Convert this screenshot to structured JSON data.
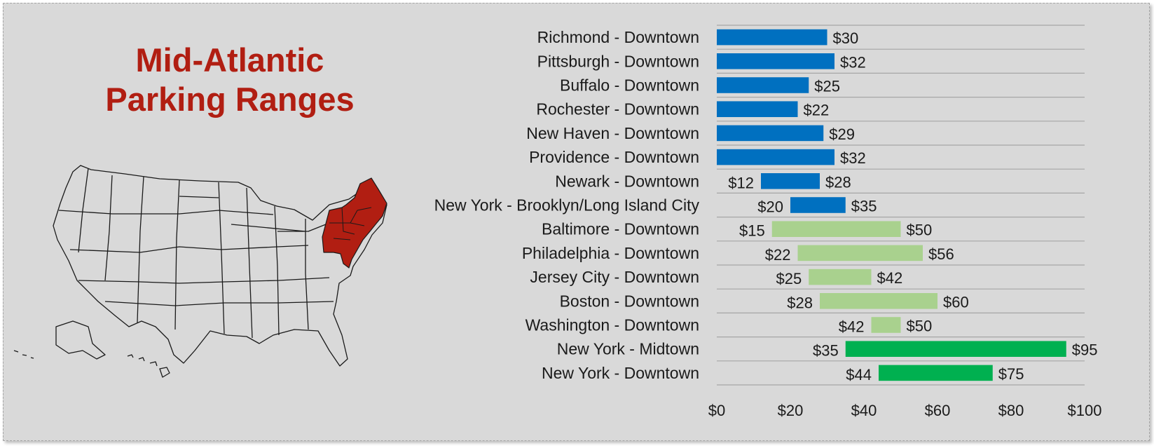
{
  "title": {
    "line1": "Mid-Atlantic",
    "line2": "Parking Ranges"
  },
  "colors": {
    "title": "#b11e12",
    "map_highlight": "#b11e12",
    "series_blue": "#0070c0",
    "series_light_green": "#a9d18e",
    "series_green": "#00b050",
    "gridline": "#a6a6a6"
  },
  "map": {
    "icon": "usa-map-icon",
    "highlighted_region": "northeast"
  },
  "chart_data": {
    "type": "bar",
    "orientation": "horizontal",
    "bar_style": "floating-range",
    "categories": [
      "Richmond - Downtown",
      "Pittsburgh - Downtown",
      "Buffalo - Downtown",
      "Rochester - Downtown",
      "New Haven - Downtown",
      "Providence - Downtown",
      "Newark - Downtown",
      "New York - Brooklyn/Long Island City",
      "Baltimore - Downtown",
      "Philadelphia - Downtown",
      "Jersey City - Downtown",
      "Boston - Downtown",
      "Washington - Downtown",
      "New York - Midtown",
      "New York - Downtown"
    ],
    "low": [
      0,
      0,
      0,
      0,
      0,
      0,
      12,
      20,
      15,
      22,
      25,
      28,
      42,
      35,
      44
    ],
    "high": [
      30,
      32,
      25,
      22,
      29,
      32,
      28,
      35,
      50,
      56,
      42,
      60,
      50,
      95,
      75
    ],
    "low_labels": [
      "",
      "",
      "",
      "",
      "",
      "",
      "$12",
      "$20",
      "$15",
      "$22",
      "$25",
      "$28",
      "$42",
      "$35",
      "$44"
    ],
    "high_labels": [
      "$30",
      "$32",
      "$25",
      "$22",
      "$29",
      "$32",
      "$28",
      "$35",
      "$50",
      "$56",
      "$42",
      "$60",
      "$50",
      "$95",
      "$75"
    ],
    "colors": [
      "blue",
      "blue",
      "blue",
      "blue",
      "blue",
      "blue",
      "blue",
      "blue",
      "light_green",
      "light_green",
      "light_green",
      "light_green",
      "light_green",
      "green",
      "green"
    ],
    "x_ticks": [
      0,
      20,
      40,
      60,
      80,
      100
    ],
    "x_tick_labels": [
      "$0",
      "$20",
      "$40",
      "$60",
      "$80",
      "$100"
    ],
    "xlim": [
      0,
      100
    ],
    "grid": "horizontal separators",
    "legend": "none",
    "xlabel": "",
    "ylabel": ""
  }
}
